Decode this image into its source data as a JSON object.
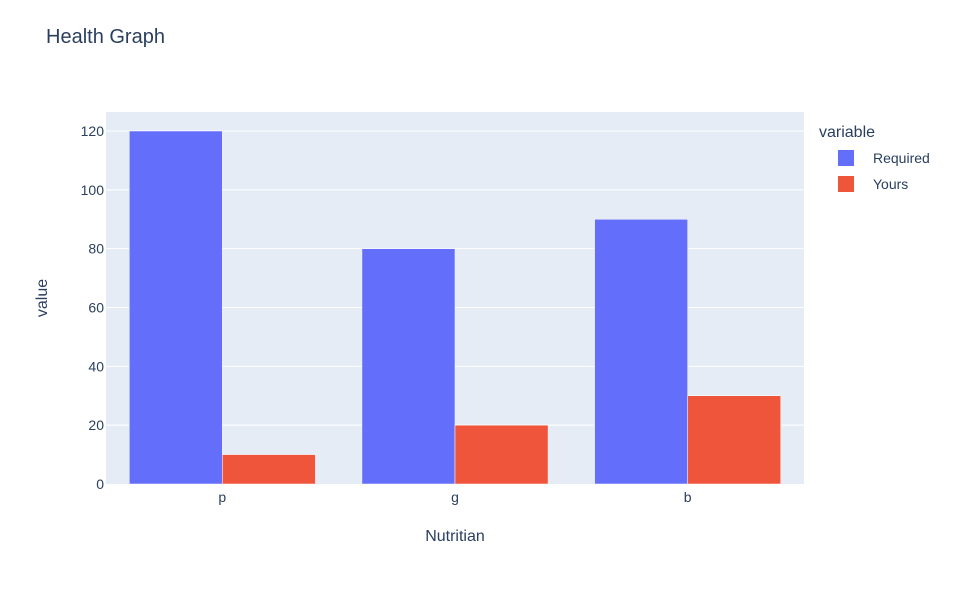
{
  "chart_data": {
    "type": "bar",
    "title": "Health Graph",
    "xlabel": "Nutritian",
    "ylabel": "value",
    "categories": [
      "p",
      "g",
      "b"
    ],
    "ylim": [
      0,
      120
    ],
    "yticks": [
      0,
      20,
      40,
      60,
      80,
      100,
      120
    ],
    "grid": true,
    "legend": {
      "title": "variable",
      "placement": "top-right"
    },
    "series": [
      {
        "name": "Required",
        "values": [
          120,
          80,
          90
        ],
        "color": "#636efa"
      },
      {
        "name": "Yours",
        "values": [
          10,
          20,
          30
        ],
        "color": "#ef553b"
      }
    ]
  }
}
